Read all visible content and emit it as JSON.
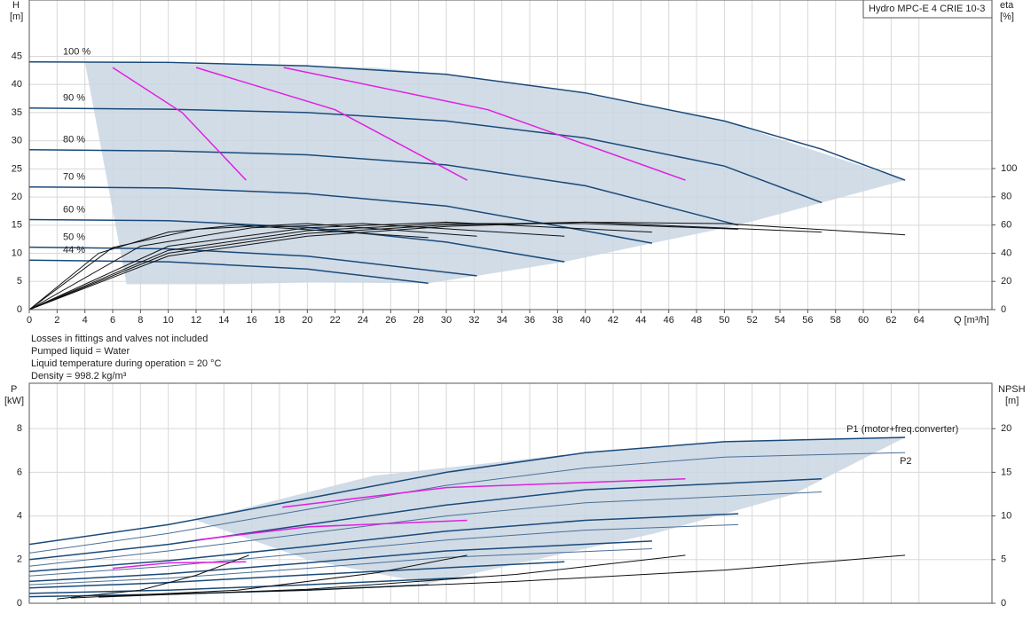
{
  "chart_data": [
    {
      "type": "line",
      "title": "Hydro MPC-E 4 CRIE 10-3",
      "x_label": "Q [m³/h]",
      "y_label": "H",
      "y_unit": "[m]",
      "y2_label": "eta",
      "y2_unit": "[%]",
      "annotations": [
        "Losses in fittings and valves not included",
        "Pumped liquid = Water",
        "Liquid temperature during operation = 20 °C",
        "Density = 998.2 kg/m³"
      ],
      "xlim": [
        0,
        69.25
      ],
      "xticks": [
        0,
        2,
        4,
        6,
        8,
        10,
        12,
        14,
        16,
        18,
        20,
        22,
        24,
        26,
        28,
        30,
        32,
        34,
        36,
        38,
        40,
        42,
        44,
        46,
        48,
        50,
        52,
        54,
        56,
        58,
        60,
        62,
        64
      ],
      "ylim": [
        0,
        55
      ],
      "yticks": [
        0,
        5,
        10,
        15,
        20,
        25,
        30,
        35,
        40,
        45
      ],
      "y2lim": [
        0,
        219.5
      ],
      "y2ticks": [
        0,
        20,
        40,
        60,
        80,
        100
      ],
      "grid": true,
      "series": [
        {
          "type": "area",
          "color": "#c9d6e3",
          "x": [
            4,
            24.8,
            30,
            40,
            50,
            63,
            57,
            51,
            44.8,
            38.5,
            32.2,
            28.7,
            20,
            14,
            7
          ],
          "values": [
            44,
            43,
            41.8,
            38.5,
            33.5,
            23,
            19,
            15,
            11.8,
            8.5,
            6,
            4.7,
            4.8,
            4.5,
            4.5
          ]
        },
        {
          "name": "100 %",
          "color": "#1a4a7a",
          "x": [
            0,
            10,
            20,
            30,
            40,
            50,
            57,
            63
          ],
          "values": [
            44,
            43.9,
            43.3,
            41.8,
            38.5,
            33.5,
            28.5,
            23
          ]
        },
        {
          "name": "90 %",
          "color": "#1a4a7a",
          "x": [
            0,
            10,
            20,
            30,
            40,
            50,
            57
          ],
          "values": [
            35.8,
            35.6,
            35,
            33.5,
            30.5,
            25.5,
            19
          ]
        },
        {
          "name": "80 %",
          "color": "#1a4a7a",
          "x": [
            0,
            10,
            20,
            30,
            40,
            51
          ],
          "values": [
            28.4,
            28.2,
            27.5,
            25.7,
            22,
            15
          ]
        },
        {
          "name": "70 %",
          "color": "#1a4a7a",
          "x": [
            0,
            10,
            20,
            30,
            40,
            44.8
          ],
          "values": [
            21.8,
            21.6,
            20.6,
            18.4,
            14,
            11.8
          ]
        },
        {
          "name": "60 %",
          "color": "#1a4a7a",
          "x": [
            0,
            10,
            20,
            30,
            38.5
          ],
          "values": [
            16,
            15.8,
            14.6,
            12,
            8.5
          ]
        },
        {
          "name": "50 %",
          "color": "#1a4a7a",
          "x": [
            0,
            10,
            20,
            32.2
          ],
          "values": [
            11.1,
            10.8,
            9.5,
            6
          ]
        },
        {
          "name": "44 %",
          "color": "#1a4a7a",
          "x": [
            0,
            10,
            20,
            28.7
          ],
          "values": [
            8.8,
            8.5,
            7.2,
            4.7
          ]
        },
        {
          "color": "#e020e0",
          "x": [
            6,
            11,
            15.6
          ],
          "values": [
            43,
            35,
            23
          ]
        },
        {
          "color": "#e020e0",
          "x": [
            12,
            22,
            31.5
          ],
          "values": [
            43,
            35.5,
            23
          ]
        },
        {
          "color": "#e020e0",
          "x": [
            18.3,
            33,
            47.2
          ],
          "values": [
            43,
            35.5,
            23
          ]
        },
        {
          "color": "#111111",
          "axis": "y2",
          "x": [
            0,
            10,
            20,
            30,
            40,
            50,
            63
          ],
          "values": [
            0,
            38,
            52,
            59,
            62,
            61,
            53
          ]
        },
        {
          "color": "#111111",
          "axis": "y2",
          "x": [
            0,
            10,
            20,
            30,
            40,
            57
          ],
          "values": [
            0,
            40,
            54,
            60,
            62,
            55
          ]
        },
        {
          "color": "#111111",
          "axis": "y2",
          "x": [
            0,
            10,
            20,
            30,
            40,
            51
          ],
          "values": [
            0,
            42,
            56,
            61,
            61,
            57
          ]
        },
        {
          "color": "#111111",
          "axis": "y2",
          "x": [
            0,
            10,
            20,
            30,
            44.8
          ],
          "values": [
            0,
            45,
            58,
            62,
            55
          ]
        },
        {
          "color": "#111111",
          "axis": "y2",
          "x": [
            0,
            8,
            16,
            24,
            38.5
          ],
          "values": [
            0,
            45,
            58,
            61,
            52
          ]
        },
        {
          "color": "#111111",
          "axis": "y2",
          "x": [
            0,
            6,
            12,
            20,
            32.2
          ],
          "values": [
            0,
            44,
            57,
            61,
            52
          ]
        },
        {
          "color": "#111111",
          "axis": "y2",
          "x": [
            0,
            5,
            10,
            15,
            28.7
          ],
          "values": [
            0,
            40,
            55,
            60,
            51
          ]
        }
      ]
    },
    {
      "type": "line",
      "y_label": "P",
      "y_unit": "[kW]",
      "y2_label": "NPSH",
      "y2_unit": "[m]",
      "xlim": [
        0,
        69.25
      ],
      "xticks": [
        0,
        2,
        4,
        6,
        8,
        10,
        12,
        14,
        16,
        18,
        20,
        22,
        24,
        26,
        28,
        30,
        32,
        34,
        36,
        38,
        40,
        42,
        44,
        46,
        48,
        50,
        52,
        54,
        56,
        58,
        60,
        62,
        64
      ],
      "ylim": [
        0,
        10.08
      ],
      "yticks": [
        0,
        2,
        4,
        6,
        8
      ],
      "y2lim": [
        0,
        25.2
      ],
      "y2ticks": [
        0,
        5,
        10,
        15,
        20
      ],
      "grid": true,
      "series": [
        {
          "type": "area",
          "color": "#c9d6e3",
          "x": [
            24.8,
            40,
            50,
            63,
            55,
            45,
            35,
            28.7,
            20,
            12
          ],
          "values": [
            5.85,
            6.9,
            7.4,
            7.6,
            5,
            3.2,
            1.8,
            0.9,
            2,
            3.8
          ]
        },
        {
          "name": "P1 (motor+freq.converter)",
          "color": "#1a4a7a",
          "x": [
            0,
            10,
            20,
            30,
            40,
            50,
            63
          ],
          "values": [
            2.7,
            3.6,
            4.8,
            6.0,
            6.9,
            7.4,
            7.6
          ]
        },
        {
          "name": "P2",
          "color": "#4a6f96",
          "x": [
            0,
            10,
            20,
            30,
            40,
            50,
            63
          ],
          "values": [
            2.3,
            3.2,
            4.3,
            5.4,
            6.2,
            6.7,
            6.9
          ]
        },
        {
          "color": "#1a4a7a",
          "x": [
            0,
            10,
            20,
            30,
            40,
            57
          ],
          "values": [
            2.0,
            2.7,
            3.6,
            4.5,
            5.2,
            5.7
          ]
        },
        {
          "color": "#4a6f96",
          "x": [
            0,
            10,
            20,
            30,
            40,
            57
          ],
          "values": [
            1.7,
            2.4,
            3.2,
            4.0,
            4.6,
            5.1
          ]
        },
        {
          "color": "#1a4a7a",
          "x": [
            0,
            10,
            20,
            30,
            40,
            51
          ],
          "values": [
            1.45,
            1.95,
            2.6,
            3.3,
            3.8,
            4.1
          ]
        },
        {
          "color": "#4a6f96",
          "x": [
            0,
            10,
            20,
            30,
            40,
            51
          ],
          "values": [
            1.25,
            1.7,
            2.3,
            2.9,
            3.35,
            3.6
          ]
        },
        {
          "color": "#1a4a7a",
          "x": [
            0,
            10,
            20,
            30,
            44.8
          ],
          "values": [
            1.0,
            1.35,
            1.85,
            2.4,
            2.85
          ]
        },
        {
          "color": "#4a6f96",
          "x": [
            0,
            10,
            20,
            30,
            44.8
          ],
          "values": [
            0.85,
            1.15,
            1.6,
            2.1,
            2.5
          ]
        },
        {
          "color": "#1a4a7a",
          "x": [
            0,
            10,
            20,
            38.5
          ],
          "values": [
            0.7,
            0.95,
            1.3,
            1.9
          ]
        },
        {
          "color": "#1a4a7a",
          "x": [
            0,
            10,
            20,
            32.2
          ],
          "values": [
            0.45,
            0.6,
            0.85,
            1.2
          ]
        },
        {
          "color": "#1a4a7a",
          "x": [
            0,
            10,
            20,
            28.7
          ],
          "values": [
            0.3,
            0.42,
            0.6,
            0.85
          ]
        },
        {
          "color": "#e020e0",
          "x": [
            6,
            10,
            15.6
          ],
          "values": [
            1.6,
            1.85,
            1.9
          ]
        },
        {
          "color": "#e020e0",
          "x": [
            12,
            20,
            31.5
          ],
          "values": [
            2.9,
            3.5,
            3.8
          ]
        },
        {
          "color": "#e020e0",
          "x": [
            18.2,
            30,
            47.2
          ],
          "values": [
            4.4,
            5.3,
            5.7
          ]
        },
        {
          "color": "#111111",
          "axis": "y2",
          "x": [
            5,
            20,
            35,
            50,
            63
          ],
          "values": [
            0.8,
            1.5,
            2.5,
            3.8,
            5.5
          ]
        },
        {
          "color": "#111111",
          "axis": "y2",
          "x": [
            5,
            20,
            35,
            47.2
          ],
          "values": [
            0.7,
            1.6,
            3.3,
            5.5
          ]
        },
        {
          "color": "#111111",
          "axis": "y2",
          "x": [
            3,
            15,
            25,
            31.5
          ],
          "values": [
            0.6,
            1.5,
            3.5,
            5.5
          ]
        },
        {
          "color": "#111111",
          "axis": "y2",
          "x": [
            2,
            8,
            12,
            15.8
          ],
          "values": [
            0.5,
            1.5,
            3.2,
            5.5
          ]
        }
      ]
    }
  ]
}
